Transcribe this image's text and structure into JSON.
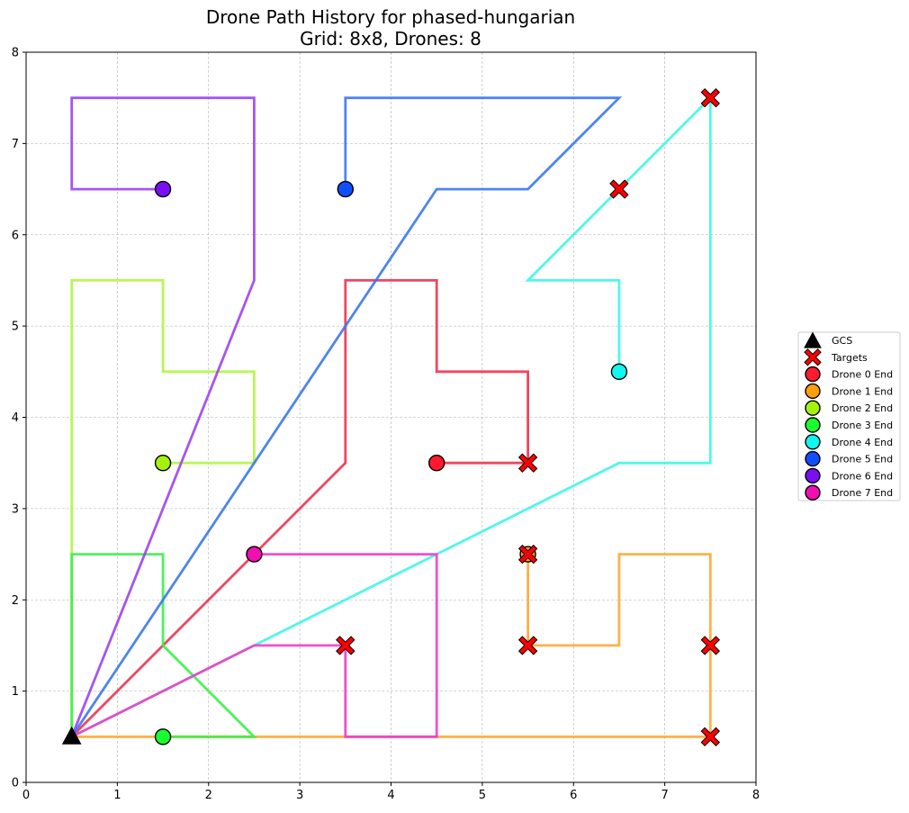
{
  "chart_data": {
    "type": "line",
    "title_line1": "Drone Path History for phased-hungarian",
    "title_line2": "Grid: 8x8, Drones: 8",
    "xlabel": "",
    "ylabel": "",
    "xlim": [
      0,
      8
    ],
    "ylim": [
      0,
      8
    ],
    "xticks": [
      "0",
      "1",
      "2",
      "3",
      "4",
      "5",
      "6",
      "7",
      "8"
    ],
    "yticks": [
      "0",
      "1",
      "2",
      "3",
      "4",
      "5",
      "6",
      "7",
      "8"
    ],
    "grid": true,
    "legend_position": "right",
    "gcs": {
      "label": "GCS",
      "x": 0.5,
      "y": 0.5,
      "color": "#000000"
    },
    "targets": {
      "label": "Targets",
      "color": "#ff0000",
      "points": [
        [
          7.5,
          7.5
        ],
        [
          6.5,
          6.5
        ],
        [
          5.5,
          3.5
        ],
        [
          3.5,
          1.5
        ],
        [
          5.5,
          1.5
        ],
        [
          7.5,
          1.5
        ],
        [
          7.5,
          0.5
        ],
        [
          5.5,
          2.5
        ]
      ]
    },
    "series": [
      {
        "name": "Drone 0 End",
        "line_color": "#f0324f",
        "end_color": "#ff1a2e",
        "path": [
          [
            0.5,
            0.5
          ],
          [
            3.5,
            3.5
          ],
          [
            3.5,
            5.5
          ],
          [
            4.5,
            5.5
          ],
          [
            4.5,
            4.5
          ],
          [
            5.5,
            4.5
          ],
          [
            5.5,
            3.5
          ],
          [
            4.5,
            3.5
          ]
        ]
      },
      {
        "name": "Drone 1 End",
        "line_color": "#ffa733",
        "end_color": "#ff9f0f",
        "path": [
          [
            0.5,
            0.5
          ],
          [
            7.5,
            0.5
          ],
          [
            7.5,
            2.5
          ],
          [
            6.5,
            2.5
          ],
          [
            6.5,
            1.5
          ],
          [
            5.5,
            1.5
          ],
          [
            5.5,
            2.5
          ]
        ]
      },
      {
        "name": "Drone 2 End",
        "line_color": "#b2f542",
        "end_color": "#a6f20f",
        "path": [
          [
            0.5,
            0.5
          ],
          [
            0.5,
            5.5
          ],
          [
            1.5,
            5.5
          ],
          [
            1.5,
            4.5
          ],
          [
            2.5,
            4.5
          ],
          [
            2.5,
            3.5
          ],
          [
            1.5,
            3.5
          ]
        ]
      },
      {
        "name": "Drone 3 End",
        "line_color": "#3cf04b",
        "end_color": "#1aff2e",
        "path": [
          [
            0.5,
            0.5
          ],
          [
            0.5,
            2.5
          ],
          [
            1.5,
            2.5
          ],
          [
            1.5,
            1.5
          ],
          [
            2.5,
            0.5
          ],
          [
            1.5,
            0.5
          ]
        ]
      },
      {
        "name": "Drone 4 End",
        "line_color": "#3cf7e6",
        "end_color": "#0ff7f0",
        "path": [
          [
            0.5,
            0.5
          ],
          [
            2.5,
            1.5
          ],
          [
            6.5,
            3.5
          ],
          [
            7.5,
            3.5
          ],
          [
            7.5,
            7.5
          ],
          [
            5.5,
            5.5
          ],
          [
            6.5,
            5.5
          ],
          [
            6.5,
            4.5
          ]
        ]
      },
      {
        "name": "Drone 5 End",
        "line_color": "#3a78f0",
        "end_color": "#0f4fff",
        "path": [
          [
            0.5,
            0.5
          ],
          [
            4.5,
            6.5
          ],
          [
            5.5,
            6.5
          ],
          [
            6.5,
            7.5
          ],
          [
            3.5,
            7.5
          ],
          [
            3.5,
            6.5
          ]
        ]
      },
      {
        "name": "Drone 6 End",
        "line_color": "#9b42f0",
        "end_color": "#7a0ff0",
        "path": [
          [
            0.5,
            0.5
          ],
          [
            2.5,
            5.5
          ],
          [
            2.5,
            7.5
          ],
          [
            0.5,
            7.5
          ],
          [
            0.5,
            6.5
          ],
          [
            1.5,
            6.5
          ]
        ]
      },
      {
        "name": "Drone 7 End",
        "line_color": "#f03cc8",
        "end_color": "#f00fb0",
        "path": [
          [
            0.5,
            0.5
          ],
          [
            2.5,
            1.5
          ],
          [
            3.5,
            1.5
          ],
          [
            3.5,
            0.5
          ],
          [
            4.5,
            0.5
          ],
          [
            4.5,
            2.5
          ],
          [
            2.5,
            2.5
          ]
        ]
      }
    ]
  }
}
